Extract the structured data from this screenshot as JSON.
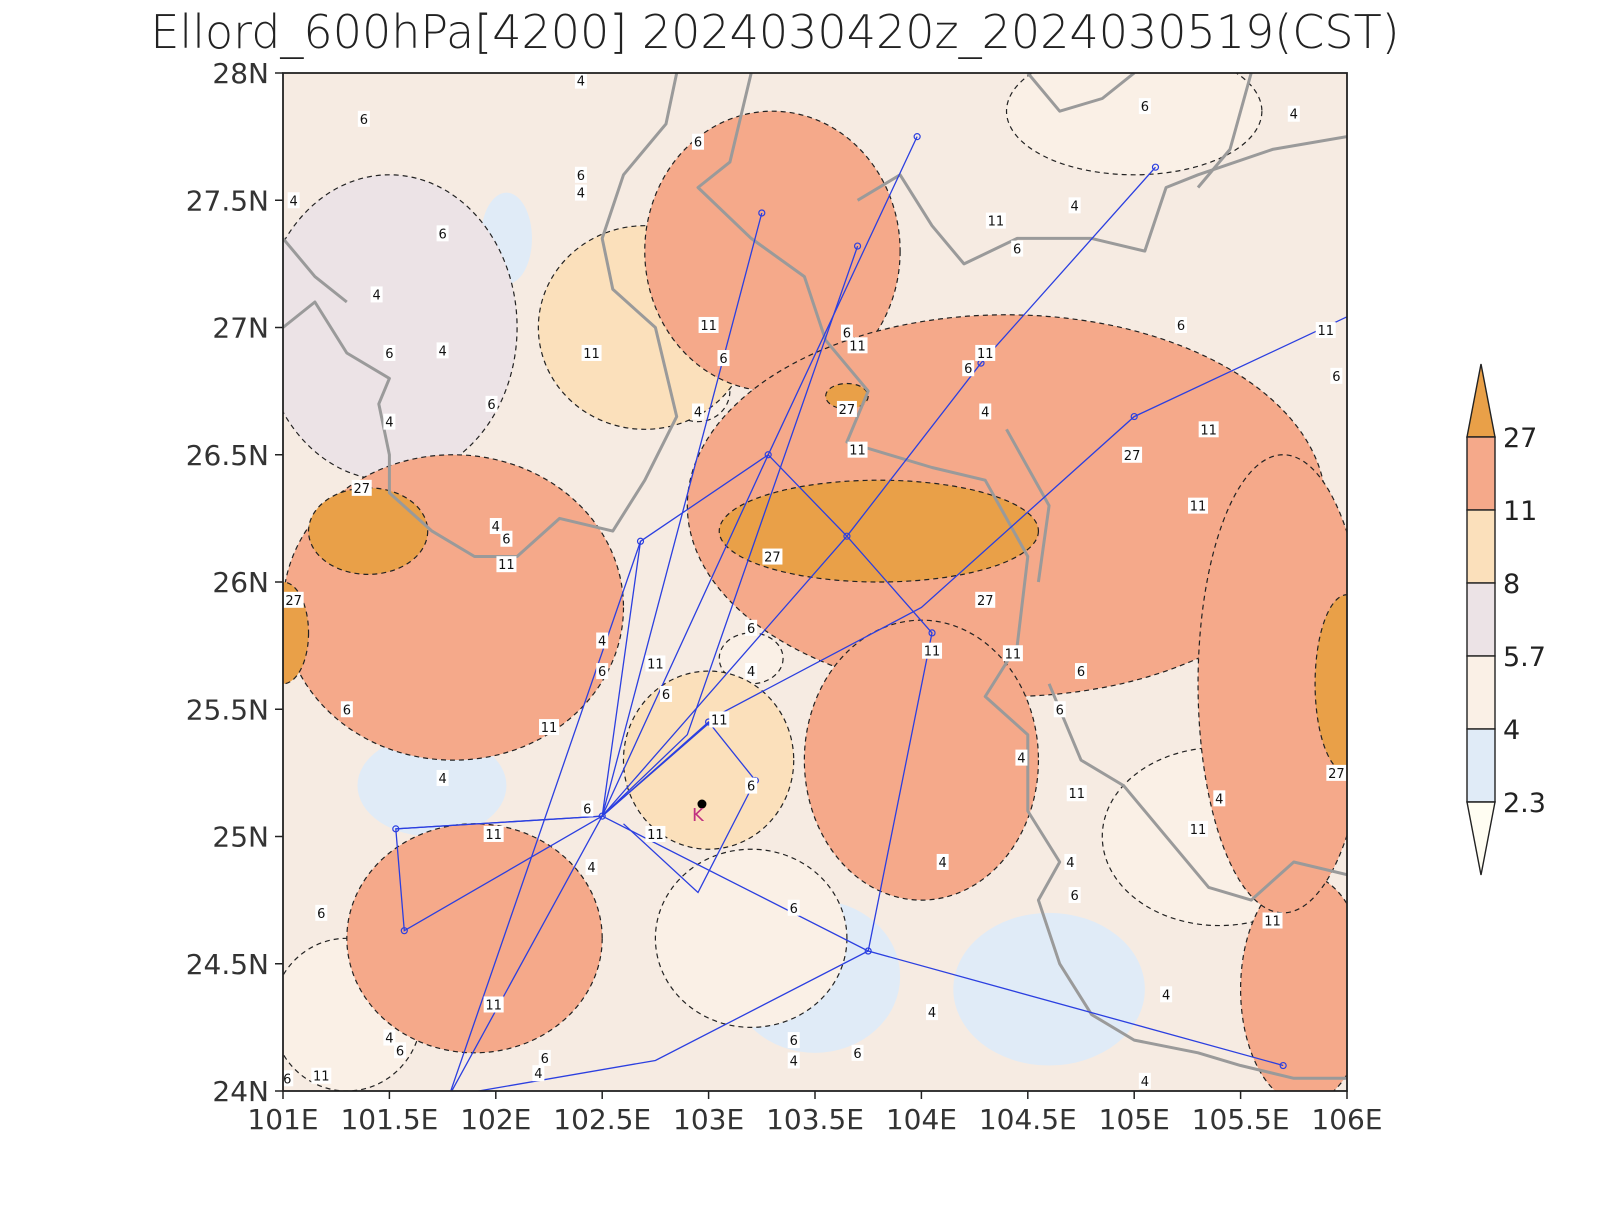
{
  "title": "Ellord_600hPa[4200] 2024030420z_2024030519(CST)",
  "axes": {
    "x_ticks": [
      "101E",
      "101.5E",
      "102E",
      "102.5E",
      "103E",
      "103.5E",
      "104E",
      "104.5E",
      "105E",
      "105.5E",
      "106E"
    ],
    "y_ticks": [
      "28N",
      "27.5N",
      "27N",
      "26.5N",
      "26N",
      "25.5N",
      "25N",
      "24.5N",
      "24N"
    ],
    "x_range": [
      101,
      106
    ],
    "y_range": [
      24,
      28
    ]
  },
  "colorbar": {
    "levels": [
      "27",
      "11",
      "8",
      "5.7",
      "4",
      "2.3"
    ],
    "colors_top_to_bottom": [
      "#e9a048",
      "#f5a98a",
      "#fbe0bb",
      "#ece3e6",
      "#faf0e6",
      "#e0ebf7",
      "#fffdf2"
    ]
  },
  "chart_data": {
    "type": "heatmap",
    "title": "Ellord_600hPa[4200] 2024030420z_2024030519(CST)",
    "xlabel": "",
    "ylabel": "",
    "xlim": [
      101,
      106
    ],
    "ylim": [
      24,
      28
    ],
    "contour_levels": [
      2.3,
      4,
      5.7,
      8,
      11,
      27
    ],
    "field_blobs": [
      {
        "lon": 101.4,
        "lat": 26.2,
        "level": 27,
        "rx": 0.28,
        "ry": 0.17
      },
      {
        "lon": 103.8,
        "lat": 26.2,
        "level": 27,
        "rx": 0.75,
        "ry": 0.2
      },
      {
        "lon": 101.0,
        "lat": 25.8,
        "level": 27,
        "rx": 0.12,
        "ry": 0.2
      },
      {
        "lon": 106.0,
        "lat": 25.6,
        "level": 27,
        "rx": 0.15,
        "ry": 0.35
      },
      {
        "lon": 103.65,
        "lat": 26.73,
        "level": 27,
        "rx": 0.1,
        "ry": 0.05
      },
      {
        "lon": 103.3,
        "lat": 27.3,
        "level": 11,
        "rx": 0.6,
        "ry": 0.55
      },
      {
        "lon": 104.4,
        "lat": 26.3,
        "level": 11,
        "rx": 1.5,
        "ry": 0.75
      },
      {
        "lon": 101.8,
        "lat": 25.9,
        "level": 11,
        "rx": 0.8,
        "ry": 0.6
      },
      {
        "lon": 104.0,
        "lat": 25.3,
        "level": 11,
        "rx": 0.55,
        "ry": 0.55
      },
      {
        "lon": 101.9,
        "lat": 24.6,
        "level": 11,
        "rx": 0.6,
        "ry": 0.45
      },
      {
        "lon": 105.8,
        "lat": 24.4,
        "level": 11,
        "rx": 0.3,
        "ry": 0.45
      },
      {
        "lon": 105.7,
        "lat": 25.6,
        "level": 11,
        "rx": 0.4,
        "ry": 0.9
      },
      {
        "lon": 102.7,
        "lat": 27.0,
        "level": 8,
        "rx": 0.5,
        "ry": 0.4
      },
      {
        "lon": 103.0,
        "lat": 25.3,
        "level": 8,
        "rx": 0.4,
        "ry": 0.35
      },
      {
        "lon": 101.5,
        "lat": 27.0,
        "level": 5.7,
        "rx": 0.6,
        "ry": 0.6
      },
      {
        "lon": 102.05,
        "lat": 27.35,
        "level": 2.3,
        "rx": 0.12,
        "ry": 0.18
      },
      {
        "lon": 101.5,
        "lat": 27.3,
        "level": 2.3,
        "rx": 0.1,
        "ry": 0.12
      },
      {
        "lon": 101.7,
        "lat": 25.2,
        "level": 2.3,
        "rx": 0.35,
        "ry": 0.2
      },
      {
        "lon": 103.5,
        "lat": 24.45,
        "level": 2.3,
        "rx": 0.4,
        "ry": 0.3
      },
      {
        "lon": 104.6,
        "lat": 24.4,
        "level": 2.3,
        "rx": 0.45,
        "ry": 0.3
      },
      {
        "lon": 105.0,
        "lat": 27.85,
        "level": 4,
        "rx": 0.6,
        "ry": 0.25
      },
      {
        "lon": 104.3,
        "lat": 26.75,
        "level": 4,
        "rx": 0.2,
        "ry": 0.12
      },
      {
        "lon": 102.95,
        "lat": 26.75,
        "level": 4,
        "rx": 0.15,
        "ry": 0.12
      },
      {
        "lon": 103.2,
        "lat": 25.7,
        "level": 4,
        "rx": 0.15,
        "ry": 0.1
      },
      {
        "lon": 103.2,
        "lat": 24.6,
        "level": 4,
        "rx": 0.45,
        "ry": 0.35
      },
      {
        "lon": 105.4,
        "lat": 25.0,
        "level": 4,
        "rx": 0.55,
        "ry": 0.35
      },
      {
        "lon": 101.3,
        "lat": 24.3,
        "level": 4,
        "rx": 0.35,
        "ry": 0.3
      }
    ],
    "contour_labels": [
      {
        "lon": 101.37,
        "lat": 26.37,
        "text": "27"
      },
      {
        "lon": 103.3,
        "lat": 26.1,
        "text": "27"
      },
      {
        "lon": 104.3,
        "lat": 25.93,
        "text": "27"
      },
      {
        "lon": 101.05,
        "lat": 25.93,
        "text": "27"
      },
      {
        "lon": 103.65,
        "lat": 26.68,
        "text": "27"
      },
      {
        "lon": 104.99,
        "lat": 26.5,
        "text": "27"
      },
      {
        "lon": 105.95,
        "lat": 25.25,
        "text": "27"
      },
      {
        "lon": 102.05,
        "lat": 26.07,
        "text": "11"
      },
      {
        "lon": 102.45,
        "lat": 26.9,
        "text": "11"
      },
      {
        "lon": 103.0,
        "lat": 27.01,
        "text": "11"
      },
      {
        "lon": 103.7,
        "lat": 26.93,
        "text": "11"
      },
      {
        "lon": 103.7,
        "lat": 26.52,
        "text": "11"
      },
      {
        "lon": 104.35,
        "lat": 27.42,
        "text": "11"
      },
      {
        "lon": 104.3,
        "lat": 26.9,
        "text": "11"
      },
      {
        "lon": 105.9,
        "lat": 26.99,
        "text": "11"
      },
      {
        "lon": 105.35,
        "lat": 26.6,
        "text": "11"
      },
      {
        "lon": 105.3,
        "lat": 26.3,
        "text": "11"
      },
      {
        "lon": 102.75,
        "lat": 25.68,
        "text": "11"
      },
      {
        "lon": 104.05,
        "lat": 25.73,
        "text": "11"
      },
      {
        "lon": 104.43,
        "lat": 25.72,
        "text": "11"
      },
      {
        "lon": 102.25,
        "lat": 25.43,
        "text": "11"
      },
      {
        "lon": 103.05,
        "lat": 25.46,
        "text": "11"
      },
      {
        "lon": 101.99,
        "lat": 25.01,
        "text": "11"
      },
      {
        "lon": 102.75,
        "lat": 25.01,
        "text": "11"
      },
      {
        "lon": 104.73,
        "lat": 25.17,
        "text": "11"
      },
      {
        "lon": 105.3,
        "lat": 25.03,
        "text": "11"
      },
      {
        "lon": 105.65,
        "lat": 24.67,
        "text": "11"
      },
      {
        "lon": 101.99,
        "lat": 24.34,
        "text": "11"
      },
      {
        "lon": 101.18,
        "lat": 24.06,
        "text": "11"
      },
      {
        "lon": 101.38,
        "lat": 27.82,
        "text": "6"
      },
      {
        "lon": 102.95,
        "lat": 27.73,
        "text": "6"
      },
      {
        "lon": 102.4,
        "lat": 27.6,
        "text": "6"
      },
      {
        "lon": 101.75,
        "lat": 27.37,
        "text": "6"
      },
      {
        "lon": 101.5,
        "lat": 26.9,
        "text": "6"
      },
      {
        "lon": 101.98,
        "lat": 26.7,
        "text": "6"
      },
      {
        "lon": 103.07,
        "lat": 26.88,
        "text": "6"
      },
      {
        "lon": 103.65,
        "lat": 26.98,
        "text": "6"
      },
      {
        "lon": 104.45,
        "lat": 27.31,
        "text": "6"
      },
      {
        "lon": 105.05,
        "lat": 27.87,
        "text": "6"
      },
      {
        "lon": 104.22,
        "lat": 26.84,
        "text": "6"
      },
      {
        "lon": 105.22,
        "lat": 27.01,
        "text": "6"
      },
      {
        "lon": 105.95,
        "lat": 26.81,
        "text": "6"
      },
      {
        "lon": 102.05,
        "lat": 26.17,
        "text": "6"
      },
      {
        "lon": 103.2,
        "lat": 25.82,
        "text": "6"
      },
      {
        "lon": 102.5,
        "lat": 25.65,
        "text": "6"
      },
      {
        "lon": 102.8,
        "lat": 25.56,
        "text": "6"
      },
      {
        "lon": 104.75,
        "lat": 25.65,
        "text": "6"
      },
      {
        "lon": 104.65,
        "lat": 25.5,
        "text": "6"
      },
      {
        "lon": 101.3,
        "lat": 25.5,
        "text": "6"
      },
      {
        "lon": 103.2,
        "lat": 25.2,
        "text": "6"
      },
      {
        "lon": 102.43,
        "lat": 25.11,
        "text": "6"
      },
      {
        "lon": 103.4,
        "lat": 24.72,
        "text": "6"
      },
      {
        "lon": 101.18,
        "lat": 24.7,
        "text": "6"
      },
      {
        "lon": 104.72,
        "lat": 24.77,
        "text": "6"
      },
      {
        "lon": 102.23,
        "lat": 24.13,
        "text": "6"
      },
      {
        "lon": 101.55,
        "lat": 24.16,
        "text": "6"
      },
      {
        "lon": 103.4,
        "lat": 24.2,
        "text": "6"
      },
      {
        "lon": 103.7,
        "lat": 24.15,
        "text": "6"
      },
      {
        "lon": 101.02,
        "lat": 24.05,
        "text": "6"
      },
      {
        "lon": 102.4,
        "lat": 27.53,
        "text": "4"
      },
      {
        "lon": 102.4,
        "lat": 27.97,
        "text": "4"
      },
      {
        "lon": 101.44,
        "lat": 27.13,
        "text": "4"
      },
      {
        "lon": 101.75,
        "lat": 26.91,
        "text": "4"
      },
      {
        "lon": 101.5,
        "lat": 26.63,
        "text": "4"
      },
      {
        "lon": 101.05,
        "lat": 27.5,
        "text": "4"
      },
      {
        "lon": 102.0,
        "lat": 26.22,
        "text": "4"
      },
      {
        "lon": 102.95,
        "lat": 26.67,
        "text": "4"
      },
      {
        "lon": 104.3,
        "lat": 26.67,
        "text": "4"
      },
      {
        "lon": 104.72,
        "lat": 27.48,
        "text": "4"
      },
      {
        "lon": 105.75,
        "lat": 27.84,
        "text": "4"
      },
      {
        "lon": 102.5,
        "lat": 25.77,
        "text": "4"
      },
      {
        "lon": 103.2,
        "lat": 25.65,
        "text": "4"
      },
      {
        "lon": 101.75,
        "lat": 25.23,
        "text": "4"
      },
      {
        "lon": 102.45,
        "lat": 24.88,
        "text": "4"
      },
      {
        "lon": 104.47,
        "lat": 25.31,
        "text": "4"
      },
      {
        "lon": 105.4,
        "lat": 25.15,
        "text": "4"
      },
      {
        "lon": 104.7,
        "lat": 24.9,
        "text": "4"
      },
      {
        "lon": 104.1,
        "lat": 24.9,
        "text": "4"
      },
      {
        "lon": 105.15,
        "lat": 24.38,
        "text": "4"
      },
      {
        "lon": 104.05,
        "lat": 24.31,
        "text": "4"
      },
      {
        "lon": 103.4,
        "lat": 24.12,
        "text": "4"
      },
      {
        "lon": 102.2,
        "lat": 24.07,
        "text": "4"
      },
      {
        "lon": 101.5,
        "lat": 24.21,
        "text": "4"
      },
      {
        "lon": 105.05,
        "lat": 24.04,
        "text": "4"
      }
    ],
    "border_lines": [
      [
        [
          102.85,
          28.0
        ],
        [
          102.8,
          27.8
        ],
        [
          102.6,
          27.6
        ],
        [
          102.5,
          27.35
        ],
        [
          102.55,
          27.15
        ],
        [
          102.75,
          27.0
        ],
        [
          102.85,
          26.65
        ],
        [
          102.7,
          26.4
        ],
        [
          102.55,
          26.2
        ],
        [
          102.3,
          26.25
        ],
        [
          102.1,
          26.1
        ],
        [
          101.9,
          26.1
        ],
        [
          101.7,
          26.2
        ],
        [
          101.5,
          26.35
        ],
        [
          101.5,
          26.5
        ],
        [
          101.45,
          26.7
        ],
        [
          101.5,
          26.8
        ],
        [
          101.3,
          26.9
        ],
        [
          101.15,
          27.1
        ],
        [
          101.0,
          27.0
        ]
      ],
      [
        [
          101.0,
          27.35
        ],
        [
          101.15,
          27.2
        ],
        [
          101.3,
          27.1
        ]
      ],
      [
        [
          103.2,
          28.0
        ],
        [
          103.1,
          27.65
        ],
        [
          102.95,
          27.55
        ],
        [
          103.2,
          27.35
        ],
        [
          103.45,
          27.2
        ],
        [
          103.55,
          26.95
        ],
        [
          103.75,
          26.75
        ],
        [
          103.65,
          26.55
        ],
        [
          103.85,
          26.5
        ],
        [
          104.05,
          26.45
        ],
        [
          104.3,
          26.4
        ],
        [
          104.5,
          26.1
        ],
        [
          104.45,
          25.75
        ],
        [
          104.3,
          25.55
        ],
        [
          104.5,
          25.4
        ],
        [
          104.5,
          25.1
        ],
        [
          104.65,
          24.9
        ],
        [
          104.55,
          24.75
        ],
        [
          104.65,
          24.5
        ],
        [
          104.8,
          24.3
        ],
        [
          105.0,
          24.2
        ],
        [
          105.3,
          24.15
        ],
        [
          105.5,
          24.1
        ],
        [
          105.75,
          24.05
        ],
        [
          106.0,
          24.05
        ]
      ],
      [
        [
          103.7,
          27.5
        ],
        [
          103.9,
          27.6
        ],
        [
          104.05,
          27.4
        ],
        [
          104.2,
          27.25
        ],
        [
          104.45,
          27.35
        ],
        [
          104.8,
          27.35
        ],
        [
          105.05,
          27.3
        ],
        [
          105.15,
          27.55
        ],
        [
          105.3,
          27.6
        ],
        [
          105.65,
          27.7
        ],
        [
          106.0,
          27.75
        ]
      ],
      [
        [
          104.5,
          28.0
        ],
        [
          104.65,
          27.85
        ],
        [
          104.85,
          27.9
        ],
        [
          105.0,
          28.0
        ]
      ],
      [
        [
          105.55,
          28.0
        ],
        [
          105.45,
          27.7
        ],
        [
          105.3,
          27.55
        ]
      ],
      [
        [
          104.4,
          26.6
        ],
        [
          104.6,
          26.3
        ],
        [
          104.55,
          26.0
        ]
      ],
      [
        [
          104.6,
          25.6
        ],
        [
          104.75,
          25.3
        ],
        [
          104.95,
          25.2
        ],
        [
          105.1,
          25.05
        ],
        [
          105.35,
          24.8
        ],
        [
          105.55,
          24.75
        ],
        [
          105.75,
          24.9
        ],
        [
          106.0,
          24.85
        ]
      ]
    ],
    "flight_tracks": [
      [
        [
          102.5,
          25.08
        ],
        [
          103.25,
          27.45
        ]
      ],
      [
        [
          102.5,
          25.08
        ],
        [
          103.65,
          26.18
        ],
        [
          104.28,
          26.86
        ],
        [
          105.1,
          27.63
        ]
      ],
      [
        [
          102.5,
          25.08
        ],
        [
          102.68,
          26.16
        ],
        [
          103.28,
          26.5
        ],
        [
          103.65,
          26.18
        ],
        [
          104.05,
          25.8
        ],
        [
          103.75,
          24.55
        ],
        [
          105.7,
          24.1
        ]
      ],
      [
        [
          102.5,
          25.08
        ],
        [
          101.53,
          25.03
        ],
        [
          101.57,
          24.63
        ],
        [
          102.5,
          25.08
        ]
      ],
      [
        [
          102.5,
          25.08
        ],
        [
          103.0,
          25.45
        ],
        [
          103.22,
          25.22
        ],
        [
          102.95,
          24.78
        ],
        [
          102.6,
          25.05
        ]
      ],
      [
        [
          102.5,
          25.08
        ],
        [
          103.75,
          24.55
        ],
        [
          102.75,
          24.12
        ],
        [
          101.78,
          23.98
        ],
        [
          102.5,
          25.08
        ]
      ],
      [
        [
          102.5,
          25.08
        ],
        [
          101.53,
          25.03
        ]
      ],
      [
        [
          102.5,
          25.08
        ],
        [
          103.28,
          26.5
        ],
        [
          103.98,
          27.75
        ]
      ],
      [
        [
          102.5,
          25.08
        ],
        [
          103.05,
          25.48
        ],
        [
          104.0,
          25.9
        ],
        [
          105.0,
          26.65
        ],
        [
          106.02,
          27.05
        ]
      ],
      [
        [
          102.5,
          25.08
        ],
        [
          102.9,
          25.4
        ],
        [
          103.7,
          27.32
        ]
      ],
      [
        [
          101.78,
          23.98
        ],
        [
          102.68,
          26.16
        ]
      ]
    ],
    "waypoints": [
      [
        103.25,
        27.45
      ],
      [
        103.98,
        27.75
      ],
      [
        103.7,
        27.32
      ],
      [
        105.1,
        27.63
      ],
      [
        106.02,
        27.05
      ],
      [
        104.28,
        26.86
      ],
      [
        105.0,
        26.65
      ],
      [
        103.28,
        26.5
      ],
      [
        102.68,
        26.16
      ],
      [
        103.65,
        26.18
      ],
      [
        104.05,
        25.8
      ],
      [
        103.0,
        25.45
      ],
      [
        103.22,
        25.22
      ],
      [
        102.5,
        25.08
      ],
      [
        101.53,
        25.03
      ],
      [
        101.57,
        24.63
      ],
      [
        103.75,
        24.55
      ],
      [
        101.78,
        23.98
      ],
      [
        105.7,
        24.1
      ]
    ],
    "station": {
      "lon": 102.95,
      "lat": 25.1,
      "text": "K"
    }
  }
}
